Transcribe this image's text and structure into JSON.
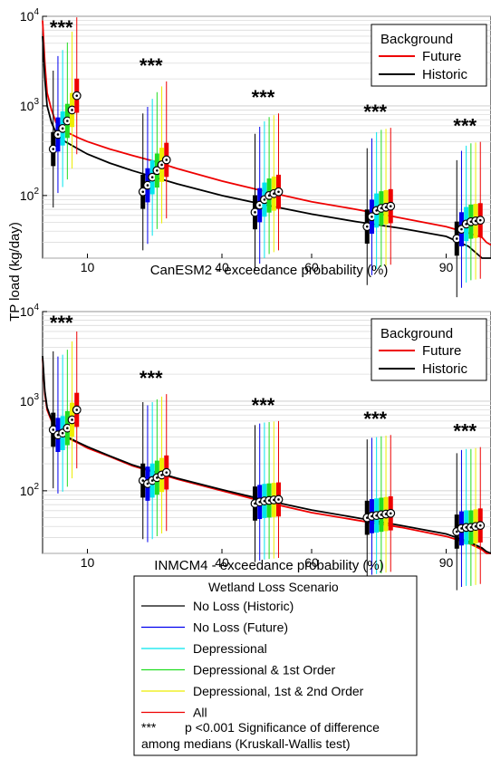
{
  "figure": {
    "ylabel": "TP load (kg/day)",
    "significance_marker": "***"
  },
  "colors": {
    "no_loss_historic": "#000000",
    "no_loss_future": "#0000ee",
    "depressional": "#00e5ee",
    "depressional_1st": "#22dd22",
    "depressional_1st_2nd": "#eeee00",
    "all": "#ee0000",
    "background_future": "#ee0000",
    "background_historic": "#000000"
  },
  "chart_data": [
    {
      "type": "box",
      "xlabel": "CanESM2 - exceedance probability (%)",
      "ylabel": "TP load (kg/day)",
      "yscale": "log",
      "ylim": [
        20,
        10000
      ],
      "ytick_labels": [
        "10^2",
        "10^3",
        "10^4"
      ],
      "xlim": [
        0,
        100
      ],
      "xticks": [
        10,
        40,
        60,
        90
      ],
      "legend": {
        "title": "Background",
        "placement": "top-right",
        "entries": [
          "Future",
          "Historic"
        ]
      },
      "background_curves": {
        "x": [
          0,
          0.5,
          1,
          2,
          3,
          5,
          8,
          10,
          15,
          20,
          25,
          30,
          40,
          50,
          60,
          70,
          80,
          90,
          95,
          98,
          99,
          100
        ],
        "future": [
          9000,
          3000,
          1400,
          900,
          650,
          520,
          440,
          400,
          330,
          280,
          240,
          200,
          145,
          110,
          85,
          70,
          56,
          45,
          38,
          34,
          30,
          28
        ],
        "historic": [
          6000,
          2000,
          1000,
          650,
          500,
          400,
          330,
          290,
          230,
          190,
          160,
          135,
          100,
          78,
          62,
          51,
          43,
          35,
          27,
          20,
          17,
          16
        ]
      },
      "box_groups": [
        {
          "x_percent": 5,
          "significance": "***",
          "medians": [
            330,
            480,
            560,
            680,
            900,
            1300
          ]
        },
        {
          "x_percent": 25,
          "significance": "***",
          "medians": [
            110,
            130,
            160,
            190,
            220,
            250
          ]
        },
        {
          "x_percent": 50,
          "significance": "***",
          "medians": [
            65,
            78,
            90,
            100,
            105,
            110
          ]
        },
        {
          "x_percent": 75,
          "significance": "***",
          "medians": [
            45,
            58,
            68,
            72,
            74,
            76
          ]
        },
        {
          "x_percent": 95,
          "significance": "***",
          "medians": [
            33,
            42,
            48,
            51,
            52,
            53
          ]
        }
      ]
    },
    {
      "type": "box",
      "xlabel": "INMCM4 - exceedance probability (%)",
      "ylabel": "TP load (kg/day)",
      "yscale": "log",
      "ylim": [
        20,
        10000
      ],
      "ytick_labels": [
        "10^2",
        "10^3",
        "10^4"
      ],
      "xlim": [
        0,
        100
      ],
      "xticks": [
        10,
        40,
        60,
        90
      ],
      "legend": {
        "title": "Background",
        "placement": "top-right",
        "entries": [
          "Future",
          "Historic"
        ]
      },
      "background_curves": {
        "x": [
          0,
          0.5,
          1,
          2,
          3,
          5,
          8,
          10,
          15,
          20,
          25,
          30,
          40,
          50,
          60,
          70,
          80,
          90,
          95,
          98,
          99,
          100
        ],
        "future": [
          3000,
          1200,
          800,
          600,
          500,
          400,
          340,
          300,
          240,
          190,
          160,
          135,
          100,
          74,
          57,
          47,
          39,
          31,
          26,
          22,
          20,
          19
        ],
        "historic": [
          3200,
          1300,
          850,
          620,
          510,
          410,
          345,
          310,
          245,
          195,
          163,
          138,
          103,
          78,
          61,
          50,
          41,
          33,
          27,
          23,
          21,
          20
        ]
      },
      "box_groups": [
        {
          "x_percent": 5,
          "significance": "***",
          "medians": [
            480,
            420,
            440,
            500,
            620,
            800
          ]
        },
        {
          "x_percent": 25,
          "significance": "***",
          "medians": [
            130,
            120,
            130,
            140,
            150,
            160
          ]
        },
        {
          "x_percent": 50,
          "significance": "***",
          "medians": [
            72,
            75,
            77,
            78,
            79,
            80
          ]
        },
        {
          "x_percent": 75,
          "significance": "***",
          "medians": [
            50,
            52,
            53,
            54,
            55,
            56
          ]
        },
        {
          "x_percent": 95,
          "significance": "***",
          "medians": [
            35,
            38,
            39,
            39,
            40,
            41
          ]
        }
      ]
    }
  ],
  "legend": {
    "title": "Wetland Loss Scenario",
    "entries": [
      {
        "label": "No Loss (Historic)",
        "color_key": "no_loss_historic"
      },
      {
        "label": "No Loss (Future)",
        "color_key": "no_loss_future"
      },
      {
        "label": "Depressional",
        "color_key": "depressional"
      },
      {
        "label": "Depressional & 1st Order",
        "color_key": "depressional_1st"
      },
      {
        "label": "Depressional, 1st & 2nd Order",
        "color_key": "depressional_1st_2nd"
      },
      {
        "label": "All",
        "color_key": "all"
      }
    ],
    "note_marker": "***",
    "note_line1": "p <0.001 Significance of difference",
    "note_line2": "among medians (Kruskall-Wallis test)"
  }
}
